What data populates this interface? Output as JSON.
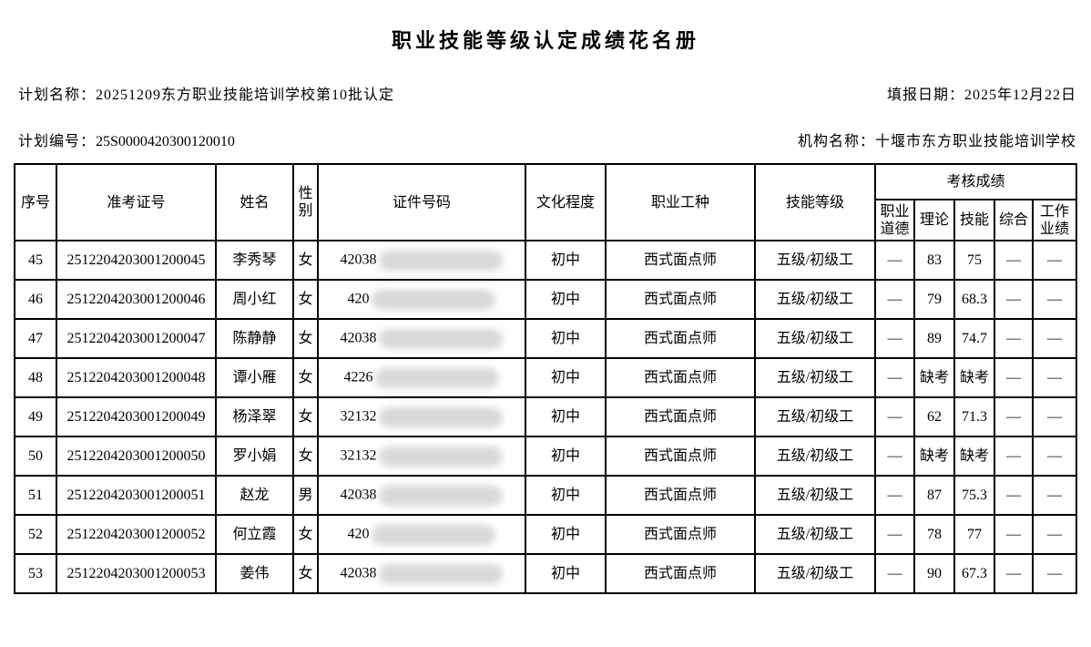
{
  "page": {
    "title": "职业技能等级认定成绩花名册"
  },
  "meta": {
    "plan_name_label": "计划名称：",
    "plan_name": "20251209东方职业技能培训学校第10批认定",
    "fill_date_label": "填报日期：",
    "fill_date": "2025年12月22日",
    "plan_code_label": "计划编号：",
    "plan_code": "25S0000420300120010",
    "org_name_label": "机构名称：",
    "org_name": "十堰市东方职业技能培训学校"
  },
  "table": {
    "headers": {
      "seq": "序号",
      "admission_no": "准考证号",
      "name": "姓名",
      "gender": "性别",
      "id_no": "证件号码",
      "education": "文化程度",
      "occupation": "职业工种",
      "skill_level": "技能等级",
      "score_group": "考核成绩",
      "sub": [
        "职业道德",
        "理论",
        "技能",
        "综合",
        "工作业绩"
      ]
    },
    "rows": [
      {
        "seq": "45",
        "admission_no": "2512204203001200045",
        "name": "李秀琴",
        "gender": "女",
        "id_prefix": "42038",
        "education": "初中",
        "occupation": "西式面点师",
        "skill_level": "五级/初级工",
        "morality": "—",
        "theory": "83",
        "skill": "75",
        "comprehensive": "—",
        "work": "—"
      },
      {
        "seq": "46",
        "admission_no": "2512204203001200046",
        "name": "周小红",
        "gender": "女",
        "id_prefix": "420",
        "education": "初中",
        "occupation": "西式面点师",
        "skill_level": "五级/初级工",
        "morality": "—",
        "theory": "79",
        "skill": "68.3",
        "comprehensive": "—",
        "work": "—"
      },
      {
        "seq": "47",
        "admission_no": "2512204203001200047",
        "name": "陈静静",
        "gender": "女",
        "id_prefix": "42038",
        "education": "初中",
        "occupation": "西式面点师",
        "skill_level": "五级/初级工",
        "morality": "—",
        "theory": "89",
        "skill": "74.7",
        "comprehensive": "—",
        "work": "—"
      },
      {
        "seq": "48",
        "admission_no": "2512204203001200048",
        "name": "谭小雁",
        "gender": "女",
        "id_prefix": "4226",
        "education": "初中",
        "occupation": "西式面点师",
        "skill_level": "五级/初级工",
        "morality": "—",
        "theory": "缺考",
        "skill": "缺考",
        "comprehensive": "—",
        "work": "—"
      },
      {
        "seq": "49",
        "admission_no": "2512204203001200049",
        "name": "杨泽翠",
        "gender": "女",
        "id_prefix": "32132",
        "education": "初中",
        "occupation": "西式面点师",
        "skill_level": "五级/初级工",
        "morality": "—",
        "theory": "62",
        "skill": "71.3",
        "comprehensive": "—",
        "work": "—"
      },
      {
        "seq": "50",
        "admission_no": "2512204203001200050",
        "name": "罗小娟",
        "gender": "女",
        "id_prefix": "32132",
        "education": "初中",
        "occupation": "西式面点师",
        "skill_level": "五级/初级工",
        "morality": "—",
        "theory": "缺考",
        "skill": "缺考",
        "comprehensive": "—",
        "work": "—"
      },
      {
        "seq": "51",
        "admission_no": "2512204203001200051",
        "name": "赵龙",
        "gender": "男",
        "id_prefix": "42038",
        "education": "初中",
        "occupation": "西式面点师",
        "skill_level": "五级/初级工",
        "morality": "—",
        "theory": "87",
        "skill": "75.3",
        "comprehensive": "—",
        "work": "—"
      },
      {
        "seq": "52",
        "admission_no": "2512204203001200052",
        "name": "何立霞",
        "gender": "女",
        "id_prefix": "420",
        "education": "初中",
        "occupation": "西式面点师",
        "skill_level": "五级/初级工",
        "morality": "—",
        "theory": "78",
        "skill": "77",
        "comprehensive": "—",
        "work": "—"
      },
      {
        "seq": "53",
        "admission_no": "2512204203001200053",
        "name": "姜伟",
        "gender": "女",
        "id_prefix": "42038",
        "education": "初中",
        "occupation": "西式面点师",
        "skill_level": "五级/初级工",
        "morality": "—",
        "theory": "90",
        "skill": "67.3",
        "comprehensive": "—",
        "work": "—"
      }
    ]
  }
}
